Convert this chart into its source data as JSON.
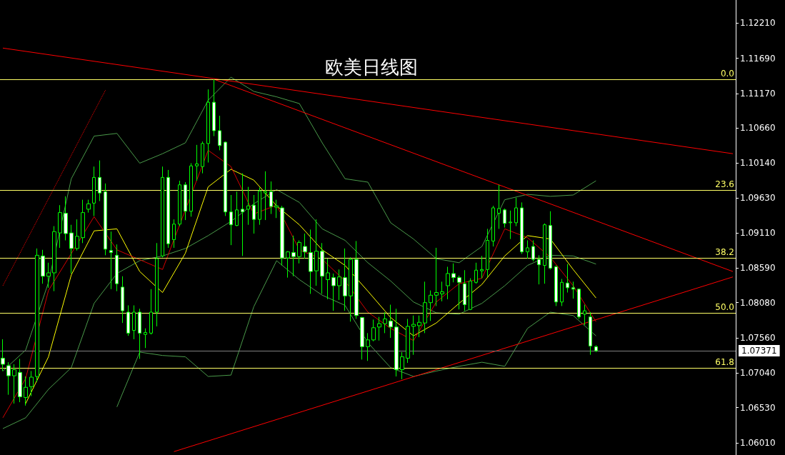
{
  "chart_data": {
    "type": "candlestick",
    "title": "欧美日线图",
    "categories": [
      null,
      null,
      null,
      null,
      null,
      null,
      null,
      null,
      null,
      null,
      null,
      null,
      null,
      null,
      null,
      null,
      null,
      null,
      null,
      null,
      null,
      null,
      null,
      null,
      null,
      null,
      null,
      null,
      null,
      null,
      null,
      null,
      null,
      null,
      null,
      null,
      null,
      null,
      null,
      null,
      null,
      null,
      null,
      null,
      null,
      null,
      null,
      null,
      null,
      null,
      null,
      null,
      null,
      null,
      null,
      null,
      null,
      null,
      null,
      null,
      null,
      null,
      null,
      null,
      null,
      null,
      null,
      null,
      null,
      null,
      null,
      null,
      null,
      null,
      null,
      null,
      null,
      null,
      null,
      null,
      null,
      null,
      null,
      null,
      null,
      null,
      null,
      null,
      null,
      null,
      null,
      null,
      null,
      null,
      null,
      null,
      null,
      null,
      null,
      null,
      null,
      null,
      null,
      null,
      null,
      null,
      null,
      null,
      null,
      null,
      null,
      null,
      null,
      null,
      null,
      null,
      null,
      null,
      null,
      null,
      null,
      null,
      null,
      null,
      null,
      null,
      null,
      null,
      null
    ],
    "ylim": [
      1.0583,
      1.1255
    ],
    "yticks": [
      {
        "value": 1.1221,
        "label": "1.12210"
      },
      {
        "value": 1.1169,
        "label": "1.11690"
      },
      {
        "value": 1.1117,
        "label": "1.11170"
      },
      {
        "value": 1.1066,
        "label": "1.10660"
      },
      {
        "value": 1.1014,
        "label": "1.10140"
      },
      {
        "value": 1.0963,
        "label": "1.09630"
      },
      {
        "value": 1.0911,
        "label": "1.09110"
      },
      {
        "value": 1.0859,
        "label": "1.08590"
      },
      {
        "value": 1.0808,
        "label": "1.08080"
      },
      {
        "value": 1.0756,
        "label": "1.07560"
      },
      {
        "value": 1.0704,
        "label": "1.07040"
      },
      {
        "value": 1.0653,
        "label": "1.06530"
      },
      {
        "value": 1.0601,
        "label": "1.06010"
      }
    ],
    "tick_labels": "y",
    "grid": false,
    "ref_lines": [
      {
        "axis": "y",
        "value": 1.11377,
        "color": "#ffff66"
      },
      {
        "axis": "y",
        "value": 1.09744,
        "color": "#ffff66"
      },
      {
        "axis": "y",
        "value": 1.08742,
        "color": "#ffff66"
      },
      {
        "axis": "y",
        "value": 1.07931,
        "color": "#ffff66"
      },
      {
        "axis": "y",
        "value": 1.07119,
        "color": "#ffff66"
      },
      {
        "axis": "y",
        "value": 1.07371,
        "label": "1.07371",
        "color": "#808080"
      }
    ],
    "annotations": [
      "0.0",
      "23.6",
      "38.2",
      "50.0",
      "61.8"
    ],
    "series": [
      {
        "type": "line",
        "color": "#4a9a4a",
        "values": [
          1.0707,
          null,
          null,
          null,
          1.0738,
          null,
          null,
          null,
          1.0838,
          null,
          null,
          null,
          1.0991,
          null,
          null,
          null,
          1.1054,
          null,
          null,
          null,
          1.1058,
          null,
          null,
          null,
          1.1014,
          null,
          null,
          null,
          1.1028,
          null,
          null,
          null,
          1.1044,
          null,
          null,
          null,
          1.1107,
          null,
          null,
          null,
          1.1141,
          null,
          null,
          null,
          1.112,
          null,
          null,
          null,
          1.1112,
          null,
          null,
          null,
          1.1102,
          null,
          null,
          null,
          1.1044,
          null,
          null,
          null,
          1.0991,
          null,
          null,
          null,
          1.0986,
          null,
          null,
          null,
          1.0926,
          null,
          null,
          null,
          1.0902,
          null,
          null,
          null,
          1.0873,
          null,
          null,
          null,
          1.0867,
          null,
          null,
          null,
          1.0891,
          null,
          null,
          null,
          1.096,
          null,
          null,
          null,
          1.0968,
          null,
          null,
          null,
          1.0965,
          null,
          null,
          null,
          1.0967,
          null,
          null,
          null,
          1.0988,
          null,
          null,
          null,
          null,
          null,
          null,
          null,
          null,
          null,
          null,
          null,
          null,
          null,
          null,
          null,
          null,
          null,
          null,
          null,
          null,
          null,
          null,
          null,
          null
        ]
      },
      {
        "type": "line",
        "color": "#4a9a4a",
        "values": [
          1.0622,
          null,
          null,
          null,
          1.0638,
          null,
          null,
          null,
          1.068,
          null,
          null,
          null,
          1.0712,
          null,
          null,
          null,
          1.0807,
          null,
          null,
          null,
          1.0851,
          null,
          null,
          null,
          1.087,
          null,
          null,
          null,
          1.0877,
          null,
          null,
          null,
          1.0888,
          null,
          null,
          null,
          1.0907,
          null,
          null,
          null,
          1.0928,
          null,
          null,
          null,
          1.0954,
          null,
          null,
          null,
          1.0975,
          null,
          null,
          null,
          1.0956,
          null,
          null,
          null,
          1.0917,
          null,
          null,
          null,
          1.09,
          null,
          null,
          null,
          1.0867,
          null,
          null,
          null,
          1.084,
          null,
          null,
          null,
          1.0809,
          null,
          null,
          null,
          1.0793,
          null,
          null,
          null,
          1.0791,
          null,
          null,
          null,
          1.0807,
          null,
          null,
          null,
          1.0833,
          null,
          null,
          null,
          1.0863,
          null,
          null,
          null,
          1.0878,
          null,
          null,
          null,
          1.0877,
          null,
          null,
          null,
          1.0865,
          null,
          null,
          null,
          null,
          null,
          null,
          null,
          null,
          null,
          null,
          null,
          null,
          null,
          null,
          null,
          null,
          null,
          null,
          null,
          null,
          null,
          null,
          null,
          null
        ]
      },
      {
        "type": "line",
        "color": "#4a9a4a",
        "values": [
          null,
          null,
          null,
          null,
          null,
          null,
          null,
          null,
          null,
          null,
          null,
          null,
          null,
          null,
          null,
          null,
          null,
          null,
          null,
          null,
          1.0654,
          null,
          null,
          null,
          1.0735,
          null,
          null,
          null,
          1.073,
          null,
          null,
          null,
          1.0728,
          null,
          null,
          null,
          1.0699,
          null,
          null,
          null,
          1.0701,
          null,
          null,
          null,
          1.0802,
          null,
          null,
          null,
          1.087,
          null,
          null,
          null,
          1.0842,
          null,
          null,
          null,
          1.0819,
          null,
          null,
          null,
          1.0804,
          null,
          null,
          null,
          1.0749,
          null,
          null,
          null,
          1.0712,
          null,
          null,
          null,
          1.0699,
          null,
          null,
          null,
          1.0707,
          null,
          null,
          null,
          1.0714,
          null,
          null,
          null,
          1.072,
          null,
          null,
          null,
          1.0714,
          null,
          null,
          null,
          1.077,
          null,
          null,
          null,
          1.0794,
          null,
          null,
          null,
          1.0789,
          null,
          null,
          null,
          1.0759,
          null,
          null,
          null,
          null,
          null,
          null,
          null,
          null,
          null,
          null,
          null,
          null,
          null,
          null,
          null,
          null,
          null,
          null,
          null,
          null,
          null,
          null,
          null,
          null
        ]
      },
      {
        "type": "line",
        "color": "#ffff00",
        "values": [
          null,
          null,
          null,
          null,
          1.0659,
          null,
          null,
          null,
          1.0728,
          null,
          null,
          null,
          1.0849,
          null,
          null,
          null,
          1.0914,
          null,
          null,
          null,
          1.0917,
          null,
          null,
          null,
          1.0854,
          null,
          null,
          null,
          1.0823,
          null,
          null,
          null,
          1.0881,
          null,
          null,
          null,
          1.0979,
          null,
          null,
          null,
          1.1005,
          null,
          null,
          null,
          1.0989,
          null,
          null,
          null,
          1.0951,
          null,
          null,
          null,
          1.0923,
          null,
          null,
          null,
          1.0886,
          null,
          null,
          null,
          1.0863,
          null,
          null,
          null,
          1.0825,
          null,
          null,
          null,
          1.0786,
          null,
          null,
          null,
          1.0759,
          null,
          null,
          null,
          1.0778,
          null,
          null,
          null,
          1.0807,
          null,
          null,
          null,
          1.0835,
          null,
          null,
          null,
          1.0877,
          null,
          null,
          null,
          1.0907,
          null,
          null,
          null,
          1.0902,
          null,
          null,
          null,
          1.0857,
          null,
          null,
          null,
          1.0815,
          null,
          null,
          null,
          null,
          null,
          null,
          null,
          null,
          null,
          null,
          null,
          null,
          null,
          null,
          null,
          null,
          null,
          null,
          null,
          null,
          null,
          null,
          null,
          null
        ]
      },
      {
        "type": "line",
        "color": "#d40000",
        "values": [
          1.0638,
          null,
          null,
          null,
          1.0696,
          null,
          null,
          null,
          1.0826,
          null,
          null,
          null,
          null,
          null,
          null,
          null,
          1.0935,
          null,
          null,
          null,
          1.0886,
          null,
          null,
          null,
          null,
          null,
          null,
          null,
          1.0857,
          null,
          null,
          null,
          null,
          null,
          null,
          null,
          1.1033,
          null,
          null,
          null,
          1.1009,
          null,
          null,
          null,
          1.0939,
          null,
          null,
          null,
          1.0952,
          null,
          null,
          null,
          1.0886,
          null,
          null,
          null,
          1.0872,
          null,
          null,
          null,
          1.084,
          null,
          null,
          null,
          1.0794,
          null,
          null,
          null,
          1.077,
          null,
          null,
          null,
          1.0752,
          null,
          null,
          null,
          1.0809,
          null,
          null,
          null,
          1.0836,
          null,
          null,
          null,
          1.0844,
          null,
          null,
          null,
          1.0917,
          null,
          null,
          null,
          1.0904,
          null,
          null,
          null,
          1.0875,
          null,
          null,
          null,
          1.0833,
          null,
          null,
          null,
          1.078,
          null,
          null,
          null,
          null,
          null,
          null,
          null,
          null,
          null,
          null,
          null,
          null,
          null,
          null,
          null,
          null,
          null,
          null,
          null,
          null,
          null,
          null,
          null,
          null
        ]
      },
      {
        "type": "line",
        "color": "#ff0000",
        "values": [
          1.1184,
          null,
          null,
          null,
          null,
          null,
          null,
          null,
          null,
          null,
          null,
          null,
          null,
          null,
          null,
          null,
          null,
          null,
          null,
          null,
          null,
          null,
          null,
          null,
          null,
          null,
          null,
          null,
          null,
          null,
          null,
          null,
          null,
          null,
          null,
          null,
          null,
          null,
          null,
          null,
          null,
          null,
          null,
          null,
          null,
          null,
          null,
          null,
          null,
          null,
          null,
          null,
          null,
          null,
          null,
          null,
          null,
          null,
          null,
          null,
          null,
          null,
          null,
          null,
          null,
          null,
          null,
          null,
          null,
          null,
          null,
          null,
          null,
          null,
          null,
          null,
          null,
          null,
          null,
          null,
          null,
          null,
          null,
          null,
          null,
          null,
          null,
          null,
          null,
          null,
          null,
          null,
          null,
          null,
          null,
          null,
          null,
          null,
          null,
          null,
          null,
          null,
          null,
          null,
          null,
          null,
          null,
          null,
          null,
          null,
          null,
          null,
          null,
          null,
          null,
          null,
          null,
          null,
          null,
          null,
          null,
          null,
          null,
          null,
          null,
          null,
          null,
          null,
          1.1028
        ]
      },
      {
        "type": "line",
        "color": "#ff0000",
        "values": [
          null,
          null,
          null,
          null,
          null,
          null,
          null,
          null,
          null,
          null,
          null,
          null,
          null,
          null,
          null,
          null,
          null,
          null,
          null,
          null,
          null,
          null,
          null,
          null,
          null,
          null,
          null,
          null,
          null,
          null,
          null,
          null,
          null,
          null,
          null,
          null,
          null,
          1.1138,
          null,
          null,
          null,
          null,
          null,
          null,
          null,
          null,
          null,
          null,
          null,
          null,
          null,
          null,
          null,
          null,
          null,
          null,
          null,
          null,
          null,
          null,
          null,
          null,
          null,
          null,
          null,
          null,
          null,
          null,
          null,
          null,
          null,
          null,
          null,
          null,
          null,
          null,
          null,
          null,
          null,
          null,
          null,
          null,
          null,
          null,
          null,
          null,
          null,
          null,
          null,
          null,
          null,
          null,
          null,
          null,
          null,
          null,
          null,
          null,
          null,
          null,
          null,
          null,
          null,
          null,
          null,
          null,
          null,
          null,
          null,
          null,
          null,
          null,
          null,
          null,
          null,
          null,
          null,
          null,
          null,
          null,
          null,
          null,
          null,
          null,
          null,
          null,
          null,
          null,
          1.0854
        ]
      },
      {
        "type": "line",
        "color": "#ff0000",
        "values": [
          null,
          null,
          null,
          null,
          null,
          null,
          null,
          null,
          null,
          null,
          null,
          null,
          null,
          null,
          null,
          null,
          null,
          null,
          null,
          null,
          null,
          null,
          null,
          null,
          null,
          null,
          null,
          null,
          null,
          null,
          1.0588,
          null,
          null,
          null,
          null,
          null,
          null,
          null,
          null,
          null,
          null,
          null,
          null,
          null,
          null,
          null,
          null,
          null,
          null,
          null,
          null,
          null,
          null,
          null,
          null,
          null,
          null,
          null,
          null,
          null,
          null,
          null,
          null,
          null,
          null,
          null,
          null,
          null,
          null,
          null,
          null,
          null,
          null,
          null,
          null,
          null,
          null,
          null,
          null,
          null,
          null,
          null,
          null,
          null,
          null,
          null,
          null,
          null,
          null,
          null,
          null,
          null,
          null,
          null,
          null,
          null,
          null,
          null,
          null,
          null,
          null,
          null,
          null,
          null,
          null,
          null,
          null,
          null,
          null,
          null,
          null,
          null,
          null,
          null,
          null,
          null,
          null,
          null,
          null,
          null,
          null,
          null,
          null,
          null,
          null,
          null,
          null,
          null,
          1.0846
        ]
      },
      {
        "type": "line",
        "color": "#ff0000",
        "line_style": "dotted",
        "values": [
          1.0833,
          null,
          null,
          null,
          null,
          null,
          null,
          null,
          null,
          null,
          null,
          null,
          null,
          null,
          null,
          null,
          null,
          null,
          1.1122,
          null,
          null,
          null,
          null,
          null,
          null,
          null,
          null,
          null,
          null,
          null,
          null,
          null,
          null,
          null,
          null,
          null,
          null,
          null,
          null,
          null,
          null,
          null,
          null,
          null,
          null,
          null,
          null,
          null,
          null,
          null,
          null,
          null,
          null,
          null,
          null,
          null,
          null,
          null,
          null,
          null,
          null,
          null,
          null,
          null,
          null,
          null,
          null,
          null,
          null,
          null,
          null,
          null,
          null,
          null,
          null,
          null,
          null,
          null,
          null,
          null,
          null,
          null,
          null,
          null,
          null,
          null,
          null,
          null,
          null,
          null,
          null,
          null,
          null,
          null,
          null,
          null,
          null,
          null,
          null,
          null,
          null,
          null,
          null,
          null,
          null,
          null,
          null,
          null,
          null,
          null,
          null,
          null,
          null,
          null,
          null,
          null,
          null,
          null,
          null,
          null,
          null,
          null,
          null,
          null,
          null,
          null,
          null,
          null,
          null
        ]
      },
      {
        "color": "#00ff00",
        "ohlc": [
          [
            1.0726,
            1.0754,
            1.0707,
            1.0717
          ],
          [
            1.0715,
            1.072,
            1.0672,
            1.07
          ],
          [
            1.07,
            1.0717,
            1.0659,
            1.0709
          ],
          [
            1.0705,
            1.0725,
            1.0661,
            1.0669
          ],
          [
            1.0668,
            1.0699,
            1.0656,
            1.0683
          ],
          [
            1.0684,
            1.0707,
            1.067,
            1.0698
          ],
          [
            1.0699,
            1.0888,
            1.0691,
            1.0878
          ],
          [
            1.0877,
            1.0886,
            1.0836,
            1.0847
          ],
          [
            1.0847,
            1.0867,
            1.083,
            1.0852
          ],
          [
            1.0852,
            1.0921,
            1.0825,
            1.0913
          ],
          [
            1.0911,
            1.0952,
            1.0889,
            1.0941
          ],
          [
            1.094,
            1.0965,
            1.09,
            1.091
          ],
          [
            1.0911,
            1.0923,
            1.0851,
            1.0888
          ],
          [
            1.0888,
            1.0931,
            1.0885,
            1.0906
          ],
          [
            1.0904,
            1.096,
            1.0896,
            1.0941
          ],
          [
            1.0946,
            1.096,
            1.0941,
            1.0954
          ],
          [
            1.0955,
            1.1009,
            1.0936,
            1.0993
          ],
          [
            1.0993,
            1.1018,
            1.0958,
            1.097
          ],
          [
            1.0972,
            1.0984,
            1.0878,
            1.0887
          ],
          [
            1.0885,
            1.0913,
            1.0828,
            1.0882
          ],
          [
            1.0878,
            1.0894,
            1.0825,
            1.0836
          ],
          [
            1.0831,
            1.0847,
            1.0778,
            1.0796
          ],
          [
            1.0794,
            1.0804,
            1.0759,
            1.0763
          ],
          [
            1.0767,
            1.0804,
            1.0754,
            1.0794
          ],
          [
            1.0794,
            1.0799,
            1.0725,
            1.0763
          ],
          [
            1.0761,
            1.077,
            1.0741,
            1.0764
          ],
          [
            1.0763,
            1.0828,
            1.0761,
            1.0794
          ],
          [
            1.0794,
            1.0896,
            1.0773,
            1.0873
          ],
          [
            1.0877,
            1.1009,
            1.0875,
            1.0993
          ],
          [
            1.0993,
            1.1004,
            1.0889,
            1.0895
          ],
          [
            1.0901,
            1.0931,
            1.0889,
            1.0924
          ],
          [
            1.0924,
            1.0988,
            1.0921,
            1.0982
          ],
          [
            1.0982,
            1.0986,
            1.093,
            1.0943
          ],
          [
            1.0943,
            1.1014,
            1.0935,
            1.101
          ],
          [
            1.101,
            1.1041,
            1.0988,
            1.1013
          ],
          [
            1.1009,
            1.1046,
            1.0999,
            1.1043
          ],
          [
            1.1043,
            1.1123,
            1.1015,
            1.1104
          ],
          [
            1.1104,
            1.1138,
            1.1054,
            1.1062
          ],
          [
            1.1062,
            1.1084,
            1.1033,
            1.104
          ],
          [
            1.1045,
            1.1046,
            1.0936,
            1.0942
          ],
          [
            1.0942,
            1.0967,
            1.0893,
            1.0923
          ],
          [
            1.0922,
            1.0972,
            1.0921,
            1.0945
          ],
          [
            1.0946,
            1.0999,
            1.0877,
            1.0942
          ],
          [
            1.0946,
            1.0979,
            1.0923,
            1.0951
          ],
          [
            1.0952,
            1.0967,
            1.091,
            1.0931
          ],
          [
            1.0931,
            1.0978,
            1.0923,
            1.0973
          ],
          [
            1.097,
            1.1002,
            1.093,
            1.0972
          ],
          [
            1.0972,
            1.0987,
            1.0939,
            1.095
          ],
          [
            1.0949,
            1.096,
            1.0933,
            1.0951
          ],
          [
            1.0948,
            1.0951,
            1.0863,
            1.0874
          ],
          [
            1.0874,
            1.0884,
            1.0845,
            1.0883
          ],
          [
            1.0882,
            1.0907,
            1.0847,
            1.0876
          ],
          [
            1.0876,
            1.09,
            1.0866,
            1.0897
          ],
          [
            1.0891,
            1.091,
            1.0873,
            1.0883
          ],
          [
            1.0882,
            1.0916,
            1.0821,
            1.0854
          ],
          [
            1.0855,
            1.0931,
            1.0833,
            1.0884
          ],
          [
            1.0884,
            1.0896,
            1.0821,
            1.0847
          ],
          [
            1.0842,
            1.0873,
            1.0813,
            1.0852
          ],
          [
            1.0845,
            1.0851,
            1.0796,
            1.0833
          ],
          [
            1.0833,
            1.0857,
            1.0812,
            1.0846
          ],
          [
            1.0845,
            1.0888,
            1.0796,
            1.0818
          ],
          [
            1.0818,
            1.0875,
            1.078,
            1.0872
          ],
          [
            1.0872,
            1.0899,
            1.0784,
            1.0789
          ],
          [
            1.0786,
            1.0787,
            1.0724,
            1.0743
          ],
          [
            1.0743,
            1.0763,
            1.0722,
            1.0753
          ],
          [
            1.0753,
            1.0783,
            1.0751,
            1.0771
          ],
          [
            1.0772,
            1.0787,
            1.0752,
            1.0777
          ],
          [
            1.0777,
            1.0794,
            1.0763,
            1.0784
          ],
          [
            1.0781,
            1.0805,
            1.0756,
            1.0772
          ],
          [
            1.0772,
            1.0799,
            1.0699,
            1.0709
          ],
          [
            1.0709,
            1.0735,
            1.0695,
            1.0728
          ],
          [
            1.0726,
            1.0784,
            1.0719,
            1.0773
          ],
          [
            1.0773,
            1.0789,
            1.0731,
            1.0776
          ],
          [
            1.0774,
            1.0789,
            1.0757,
            1.0779
          ],
          [
            1.0778,
            1.0839,
            1.0763,
            1.0808
          ],
          [
            1.0808,
            1.0826,
            1.0781,
            1.0819
          ],
          [
            1.0819,
            1.0889,
            1.0803,
            1.0823
          ],
          [
            1.0821,
            1.0839,
            1.081,
            1.0824
          ],
          [
            1.0833,
            1.0861,
            1.0813,
            1.0851
          ],
          [
            1.0851,
            1.0866,
            1.0838,
            1.0845
          ],
          [
            1.0845,
            1.0848,
            1.0798,
            1.0838
          ],
          [
            1.0836,
            1.0856,
            1.0796,
            1.0805
          ],
          [
            1.0798,
            1.0844,
            1.0797,
            1.084
          ],
          [
            1.0838,
            1.0867,
            1.0836,
            1.0856
          ],
          [
            1.0855,
            1.0877,
            1.0844,
            1.0857
          ],
          [
            1.0857,
            1.0917,
            1.0846,
            1.09
          ],
          [
            1.0899,
            1.0951,
            1.0891,
            1.0948
          ],
          [
            1.094,
            1.0982,
            1.0917,
            1.0947
          ],
          [
            1.0945,
            1.0947,
            1.0919,
            1.0925
          ],
          [
            1.0926,
            1.0944,
            1.0902,
            1.0927
          ],
          [
            1.0926,
            1.0963,
            1.0921,
            1.0948
          ],
          [
            1.0948,
            1.0956,
            1.088,
            1.0883
          ],
          [
            1.0883,
            1.09,
            1.0873,
            1.0889
          ],
          [
            1.0891,
            1.09,
            1.0869,
            1.0872
          ],
          [
            1.0872,
            1.0878,
            1.0835,
            1.0864
          ],
          [
            1.0863,
            1.0925,
            1.0836,
            1.0923
          ],
          [
            1.0922,
            1.0943,
            1.0857,
            1.0859
          ],
          [
            1.0861,
            1.0863,
            1.0803,
            1.0809
          ],
          [
            1.0809,
            1.0843,
            1.0803,
            1.0838
          ],
          [
            1.0837,
            1.0865,
            1.0823,
            1.083
          ],
          [
            1.083,
            1.0839,
            1.0814,
            1.0828
          ],
          [
            1.0828,
            1.0829,
            1.0784,
            1.0787
          ],
          [
            1.0791,
            1.0805,
            1.0775,
            1.0796
          ],
          [
            1.0787,
            1.0794,
            1.0731,
            1.0744
          ],
          [
            1.0743,
            1.0745,
            1.0735,
            1.0737
          ],
          null,
          null,
          null,
          null,
          null,
          null,
          null,
          null,
          null,
          null,
          null,
          null,
          null,
          null,
          null,
          null,
          null,
          null,
          null,
          null,
          null,
          null,
          null,
          null
        ]
      }
    ]
  }
}
